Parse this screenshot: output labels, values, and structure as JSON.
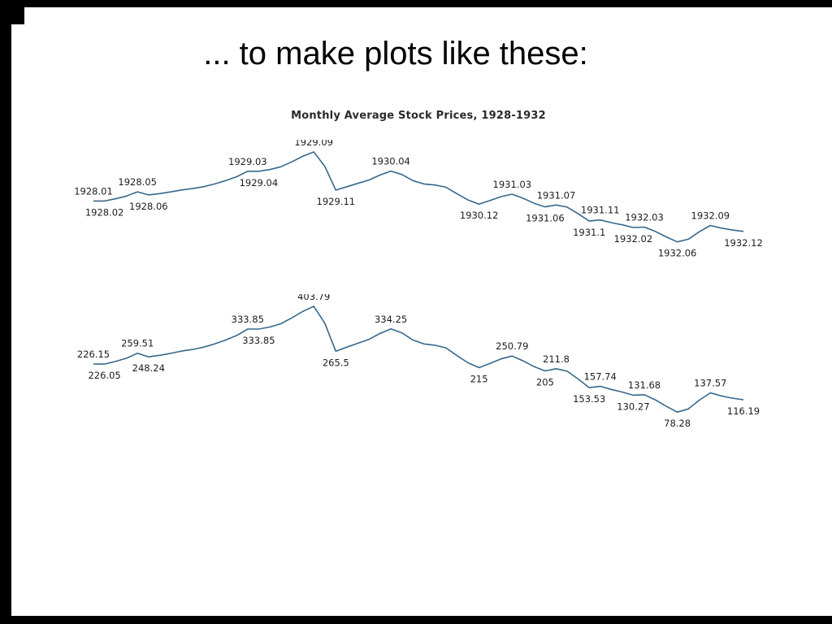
{
  "slide": {
    "title": "... to make plots like these:"
  },
  "frame": {
    "border_color": "#000000",
    "background": "#ffffff"
  },
  "chart_data": [
    {
      "type": "line",
      "title": "Monthly Average Stock Prices, 1928-1932",
      "label_content": "dates",
      "line_color": "#36688c",
      "grid": false,
      "axes": "hidden",
      "ylim": [
        70,
        410
      ],
      "x": [
        "1928.01",
        "1928.02",
        "1928.03",
        "1928.04",
        "1928.05",
        "1928.06",
        "1928.07",
        "1928.08",
        "1928.09",
        "1928.10",
        "1928.11",
        "1928.12",
        "1929.01",
        "1929.02",
        "1929.03",
        "1929.04",
        "1929.05",
        "1929.06",
        "1929.07",
        "1929.08",
        "1929.09",
        "1929.10",
        "1929.11",
        "1929.12",
        "1930.01",
        "1930.02",
        "1930.03",
        "1930.04",
        "1930.05",
        "1930.06",
        "1930.07",
        "1930.08",
        "1930.09",
        "1930.10",
        "1930.11",
        "1930.12",
        "1931.01",
        "1931.02",
        "1931.03",
        "1931.04",
        "1931.05",
        "1931.06",
        "1931.07",
        "1931.08",
        "1931.09",
        "1931.10",
        "1931.11",
        "1931.12",
        "1932.01",
        "1932.02",
        "1932.03",
        "1932.04",
        "1932.05",
        "1932.06",
        "1932.07",
        "1932.08",
        "1932.09",
        "1932.10",
        "1932.11",
        "1932.12"
      ],
      "values": [
        226.15,
        226.05,
        234,
        244,
        259.51,
        248.24,
        253,
        259,
        266,
        271,
        278,
        288,
        300,
        314,
        333.85,
        333.85,
        340,
        350,
        368,
        388,
        403.79,
        352,
        265.5,
        278,
        290,
        302,
        320,
        334.25,
        322,
        300,
        288,
        284,
        276,
        252,
        230,
        215,
        228,
        242,
        250.79,
        236,
        218,
        205,
        211.8,
        204,
        180,
        153.53,
        157.74,
        148,
        140,
        130.27,
        131.68,
        116,
        96,
        78.28,
        88,
        115,
        137.57,
        128,
        121,
        116.19
      ],
      "labels": [
        {
          "index": 0,
          "text": "1928.01",
          "position": "above"
        },
        {
          "index": 1,
          "text": "1928.02",
          "position": "below"
        },
        {
          "index": 4,
          "text": "1928.05",
          "position": "above"
        },
        {
          "index": 5,
          "text": "1928.06",
          "position": "below"
        },
        {
          "index": 14,
          "text": "1929.03",
          "position": "above"
        },
        {
          "index": 15,
          "text": "1929.04",
          "position": "below"
        },
        {
          "index": 20,
          "text": "1929.09",
          "position": "above"
        },
        {
          "index": 22,
          "text": "1929.11",
          "position": "below"
        },
        {
          "index": 27,
          "text": "1930.04",
          "position": "above"
        },
        {
          "index": 35,
          "text": "1930.12",
          "position": "below"
        },
        {
          "index": 38,
          "text": "1931.03",
          "position": "above"
        },
        {
          "index": 41,
          "text": "1931.06",
          "position": "below"
        },
        {
          "index": 42,
          "text": "1931.07",
          "position": "above"
        },
        {
          "index": 45,
          "text": "1931.1",
          "position": "below"
        },
        {
          "index": 46,
          "text": "1931.11",
          "position": "above"
        },
        {
          "index": 49,
          "text": "1932.02",
          "position": "below"
        },
        {
          "index": 50,
          "text": "1932.03",
          "position": "above"
        },
        {
          "index": 53,
          "text": "1932.06",
          "position": "below"
        },
        {
          "index": 56,
          "text": "1932.09",
          "position": "above"
        },
        {
          "index": 59,
          "text": "1932.12",
          "position": "below"
        }
      ]
    },
    {
      "type": "line",
      "title": "",
      "label_content": "values",
      "line_color": "#36688c",
      "grid": false,
      "axes": "hidden",
      "ylim": [
        70,
        410
      ],
      "x": [
        "1928.01",
        "1928.02",
        "1928.03",
        "1928.04",
        "1928.05",
        "1928.06",
        "1928.07",
        "1928.08",
        "1928.09",
        "1928.10",
        "1928.11",
        "1928.12",
        "1929.01",
        "1929.02",
        "1929.03",
        "1929.04",
        "1929.05",
        "1929.06",
        "1929.07",
        "1929.08",
        "1929.09",
        "1929.10",
        "1929.11",
        "1929.12",
        "1930.01",
        "1930.02",
        "1930.03",
        "1930.04",
        "1930.05",
        "1930.06",
        "1930.07",
        "1930.08",
        "1930.09",
        "1930.10",
        "1930.11",
        "1930.12",
        "1931.01",
        "1931.02",
        "1931.03",
        "1931.04",
        "1931.05",
        "1931.06",
        "1931.07",
        "1931.08",
        "1931.09",
        "1931.10",
        "1931.11",
        "1931.12",
        "1932.01",
        "1932.02",
        "1932.03",
        "1932.04",
        "1932.05",
        "1932.06",
        "1932.07",
        "1932.08",
        "1932.09",
        "1932.10",
        "1932.11",
        "1932.12"
      ],
      "values": [
        226.15,
        226.05,
        234,
        244,
        259.51,
        248.24,
        253,
        259,
        266,
        271,
        278,
        288,
        300,
        314,
        333.85,
        333.85,
        340,
        350,
        368,
        388,
        403.79,
        352,
        265.5,
        278,
        290,
        302,
        320,
        334.25,
        322,
        300,
        288,
        284,
        276,
        252,
        230,
        215,
        228,
        242,
        250.79,
        236,
        218,
        205,
        211.8,
        204,
        180,
        153.53,
        157.74,
        148,
        140,
        130.27,
        131.68,
        116,
        96,
        78.28,
        88,
        115,
        137.57,
        128,
        121,
        116.19
      ],
      "labels": [
        {
          "index": 0,
          "text": "226.15",
          "position": "above"
        },
        {
          "index": 1,
          "text": "226.05",
          "position": "below"
        },
        {
          "index": 4,
          "text": "259.51",
          "position": "above"
        },
        {
          "index": 5,
          "text": "248.24",
          "position": "below"
        },
        {
          "index": 14,
          "text": "333.85",
          "position": "above"
        },
        {
          "index": 15,
          "text": "333.85",
          "position": "below"
        },
        {
          "index": 20,
          "text": "403.79",
          "position": "above"
        },
        {
          "index": 22,
          "text": "265.5",
          "position": "below"
        },
        {
          "index": 27,
          "text": "334.25",
          "position": "above"
        },
        {
          "index": 35,
          "text": "215",
          "position": "below"
        },
        {
          "index": 38,
          "text": "250.79",
          "position": "above"
        },
        {
          "index": 41,
          "text": "205",
          "position": "below"
        },
        {
          "index": 42,
          "text": "211.8",
          "position": "above"
        },
        {
          "index": 45,
          "text": "153.53",
          "position": "below"
        },
        {
          "index": 46,
          "text": "157.74",
          "position": "above"
        },
        {
          "index": 49,
          "text": "130.27",
          "position": "below"
        },
        {
          "index": 50,
          "text": "131.68",
          "position": "above"
        },
        {
          "index": 53,
          "text": "78.28",
          "position": "below"
        },
        {
          "index": 56,
          "text": "137.57",
          "position": "above"
        },
        {
          "index": 59,
          "text": "116.19",
          "position": "below"
        }
      ]
    }
  ]
}
